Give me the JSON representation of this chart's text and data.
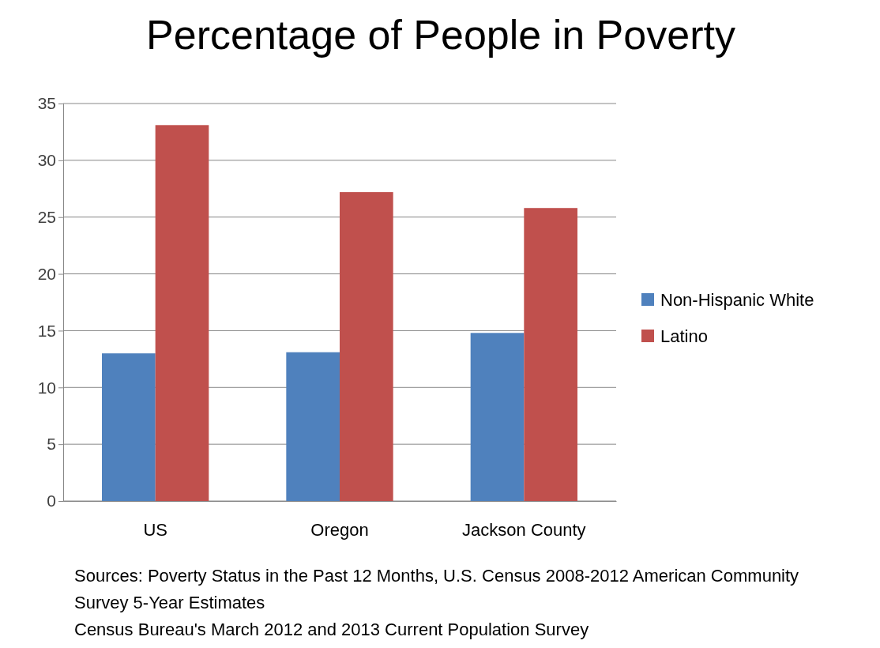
{
  "chart_data": {
    "type": "bar",
    "title": "Percentage of People in Poverty",
    "categories": [
      "US",
      "Oregon",
      "Jackson County"
    ],
    "series": [
      {
        "name": "Non-Hispanic White",
        "color": "#4f81bd",
        "values": [
          13.0,
          13.1,
          14.8
        ]
      },
      {
        "name": "Latino",
        "color": "#c0504d",
        "values": [
          33.1,
          27.2,
          25.8
        ]
      }
    ],
    "ylim": [
      0,
      35
    ],
    "yticks": [
      0,
      5,
      10,
      15,
      20,
      25,
      30,
      35
    ],
    "grid": "y",
    "legend": "right",
    "annotations": [
      "Sources: Poverty Status in the Past 12 Months, U.S. Census 2008-2012 American Community Survey 5-Year Estimates",
      "Census Bureau's March 2012 and 2013 Current Population Survey"
    ]
  }
}
